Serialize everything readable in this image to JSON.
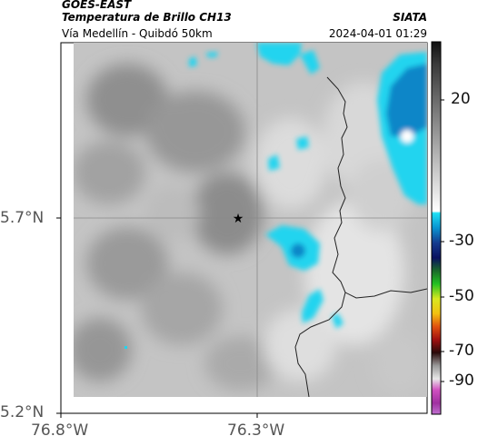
{
  "header": {
    "satellite": "GOES-EAST",
    "product": "Temperatura de Brillo CH13",
    "region": "Vía Medellín - Quibdó 50km",
    "agency": "SIATA",
    "datetime": "2024-04-01 01:29"
  },
  "map": {
    "lat_labels": [
      "5.7°N",
      "5.2°N"
    ],
    "lon_labels": [
      "76.8°W",
      "76.3°W"
    ],
    "marker_icon": "star-icon"
  },
  "colorbar": {
    "labels": [
      "20",
      "-30",
      "-50",
      "-70",
      "-90"
    ],
    "colors": {
      "cold_blue": "#0a86c8",
      "light_cyan": "#22d4ef",
      "gray_scale_warm": "#f2f2f2",
      "gray_scale_mid": "#9a9a9a"
    }
  }
}
